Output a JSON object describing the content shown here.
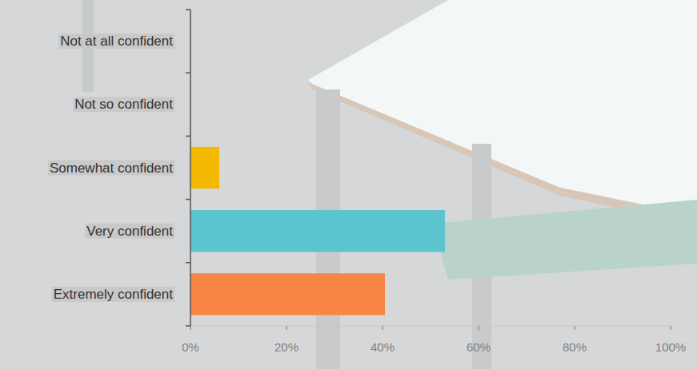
{
  "chart_data": {
    "type": "bar",
    "orientation": "horizontal",
    "categories": [
      "Not at all confident",
      "Not so confident",
      "Somewhat confident",
      "Very confident",
      "Extremely confident"
    ],
    "values": [
      0,
      0,
      6,
      53,
      40.5
    ],
    "colors": [
      "#f5b800",
      "#f5b800",
      "#f5b800",
      "#5bc4cc",
      "#f98545"
    ],
    "xlim": [
      0,
      100
    ],
    "xticks": [
      {
        "value": 0,
        "label": "0%"
      },
      {
        "value": 20,
        "label": "20%"
      },
      {
        "value": 40,
        "label": "40%"
      },
      {
        "value": 60,
        "label": "60%"
      },
      {
        "value": 80,
        "label": "80%"
      },
      {
        "value": 100,
        "label": "100%"
      }
    ],
    "grid": false
  }
}
